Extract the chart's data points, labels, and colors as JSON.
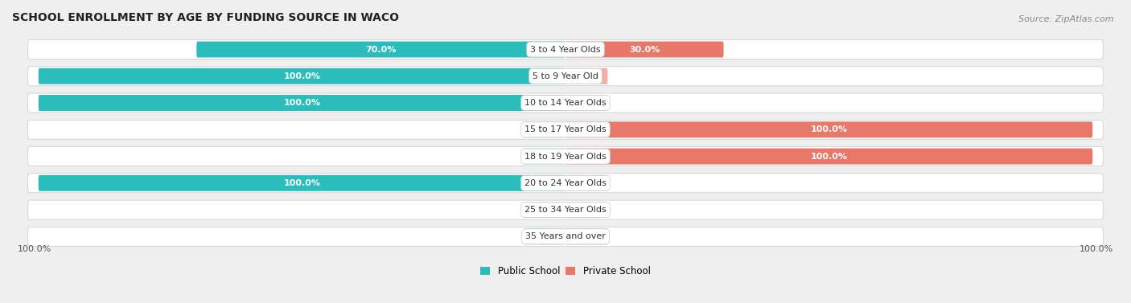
{
  "title": "SCHOOL ENROLLMENT BY AGE BY FUNDING SOURCE IN WACO",
  "source": "Source: ZipAtlas.com",
  "categories": [
    "3 to 4 Year Olds",
    "5 to 9 Year Old",
    "10 to 14 Year Olds",
    "15 to 17 Year Olds",
    "18 to 19 Year Olds",
    "20 to 24 Year Olds",
    "25 to 34 Year Olds",
    "35 Years and over"
  ],
  "public_values": [
    70.0,
    100.0,
    100.0,
    0.0,
    0.0,
    100.0,
    0.0,
    0.0
  ],
  "private_values": [
    30.0,
    0.0,
    0.0,
    100.0,
    100.0,
    0.0,
    0.0,
    0.0
  ],
  "public_color": "#2bbcbc",
  "private_color": "#e8786a",
  "public_color_light": "#8dd8e0",
  "private_color_light": "#f0b0a8",
  "bg_color": "#efefef",
  "title_fontsize": 10,
  "source_fontsize": 8,
  "label_fontsize": 8,
  "axis_label_fontsize": 8,
  "x_left_label": "100.0%",
  "x_right_label": "100.0%"
}
